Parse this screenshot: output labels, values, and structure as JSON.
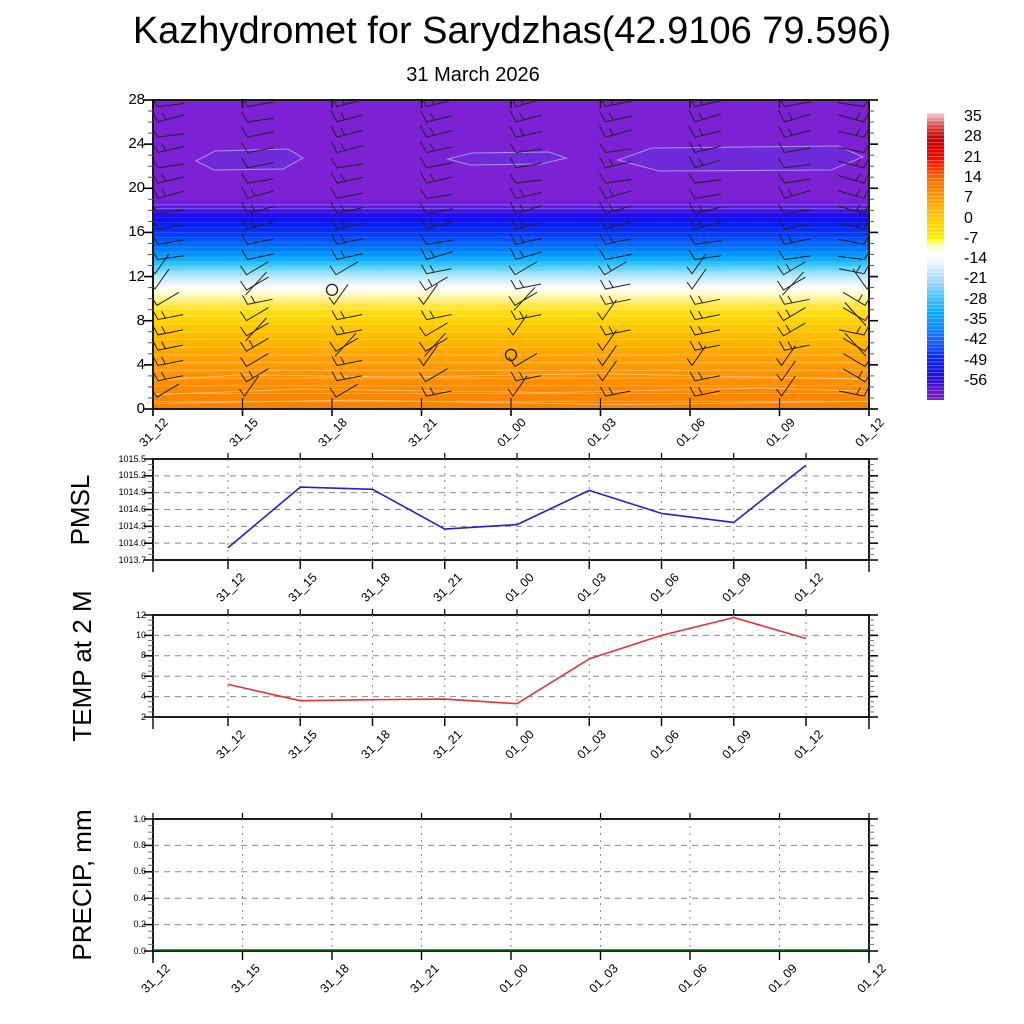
{
  "title": "Kazhydromet for Sarydzhas(42.9106 79.596)",
  "subtitle": "31 March 2026",
  "time_labels": [
    "31_12",
    "31_15",
    "31_18",
    "31_21",
    "01_00",
    "01_03",
    "01_06",
    "01_09",
    "01_12"
  ],
  "colors": {
    "pmsl_line": "#2121cd",
    "temp_line": "#e23434",
    "precip_line": "#006a00",
    "frame": "#1a1a1a",
    "grid": "#8a8a8a",
    "contour_purple": "#7d21d5",
    "contour_orange": "#f78306",
    "blob_fill": "#6d2ad9",
    "blob_outline": "#ab8cea"
  },
  "chart_data": [
    {
      "id": "upper_air_temperature",
      "type": "heatmap",
      "x": [
        "31_12",
        "31_15",
        "31_18",
        "31_21",
        "01_00",
        "01_03",
        "01_06",
        "01_09",
        "01_12"
      ],
      "y_ticks": [
        "0",
        "4",
        "8",
        "12",
        "16",
        "20",
        "24",
        "28"
      ],
      "ylim": [
        0,
        28
      ],
      "y_minor_step": 1,
      "colorbar_labels": [
        "35",
        "28",
        "21",
        "14",
        "7",
        "0",
        "-7",
        "-14",
        "-21",
        "-28",
        "-35",
        "-42",
        "-49",
        "-56"
      ],
      "wind_barbs": {
        "columns": 9,
        "rows_per_column": 20,
        "calm_circles": [
          {
            "x": "31_18",
            "level": 10.8
          },
          {
            "x": "01_00",
            "level": 4.9
          }
        ]
      }
    },
    {
      "id": "pmsl",
      "type": "line",
      "ylabel": "PMSL",
      "x": [
        "31_12",
        "31_15",
        "31_18",
        "31_21",
        "01_00",
        "01_03",
        "01_06",
        "01_09",
        "01_12"
      ],
      "values": [
        1013.92,
        1015.0,
        1014.96,
        1014.25,
        1014.33,
        1014.94,
        1014.53,
        1014.37,
        1015.39
      ],
      "y_ticks": [
        "1013.7",
        "1014.0",
        "1014.3",
        "1014.6",
        "1014.9",
        "1015.2",
        "1015.5"
      ],
      "ylim": [
        1013.7,
        1015.5
      ],
      "y_minor_step": 0.1
    },
    {
      "id": "temp_2m",
      "type": "line",
      "ylabel": "TEMP at 2 M",
      "x": [
        "31_12",
        "31_15",
        "31_18",
        "31_21",
        "01_00",
        "01_03",
        "01_06",
        "01_09",
        "01_12"
      ],
      "values": [
        5.2,
        3.6,
        3.7,
        3.75,
        3.3,
        7.7,
        10.0,
        11.75,
        9.7
      ],
      "y_ticks": [
        "2",
        "4",
        "6",
        "8",
        "10",
        "12"
      ],
      "ylim": [
        2,
        12
      ],
      "y_minor_step": 0.5
    },
    {
      "id": "precip",
      "type": "line",
      "ylabel": "PRECIP, mm",
      "x": [
        "31_12",
        "31_15",
        "31_18",
        "31_21",
        "01_00",
        "01_03",
        "01_06",
        "01_09",
        "01_12"
      ],
      "values": [
        0,
        0,
        0,
        0,
        0,
        0,
        0,
        0,
        0
      ],
      "y_ticks": [
        "0.0",
        "0.2",
        "0.4",
        "0.6",
        "0.8",
        "1.0"
      ],
      "ylim": [
        0,
        1
      ],
      "y_minor_step": 0.05
    }
  ]
}
